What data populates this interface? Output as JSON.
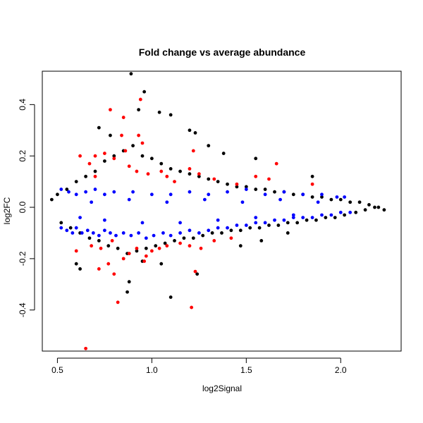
{
  "chart_data": {
    "type": "scatter",
    "title": "Fold change vs average abundance",
    "xlabel": "log2Signal",
    "ylabel": "log2FC",
    "xlim": [
      0.42,
      2.32
    ],
    "ylim": [
      -0.56,
      0.53
    ],
    "x_ticks": [
      {
        "value": 0.5,
        "label": "0.5"
      },
      {
        "value": 1.0,
        "label": "1.0"
      },
      {
        "value": 1.5,
        "label": "1.5"
      },
      {
        "value": 2.0,
        "label": "2.0"
      }
    ],
    "y_ticks": [
      {
        "value": -0.4,
        "label": "-0.4"
      },
      {
        "value": -0.2,
        "label": "-0.2"
      },
      {
        "value": 0.0,
        "label": "0.0"
      },
      {
        "value": 0.2,
        "label": "0.2"
      },
      {
        "value": 0.4,
        "label": "0.4"
      }
    ],
    "grid": false,
    "legend": "none",
    "series": [
      {
        "color": "#000000",
        "points": [
          [
            0.47,
            0.03
          ],
          [
            0.5,
            0.05
          ],
          [
            0.52,
            -0.06
          ],
          [
            0.55,
            0.07
          ],
          [
            0.57,
            -0.08
          ],
          [
            0.6,
            0.1
          ],
          [
            0.62,
            -0.1
          ],
          [
            0.65,
            0.12
          ],
          [
            0.67,
            -0.12
          ],
          [
            0.7,
            0.14
          ],
          [
            0.72,
            -0.13
          ],
          [
            0.75,
            0.18
          ],
          [
            0.77,
            -0.15
          ],
          [
            0.8,
            0.2
          ],
          [
            0.82,
            -0.16
          ],
          [
            0.85,
            0.22
          ],
          [
            0.87,
            -0.18
          ],
          [
            0.9,
            0.24
          ],
          [
            0.92,
            -0.17
          ],
          [
            0.95,
            0.2
          ],
          [
            0.97,
            -0.16
          ],
          [
            1.0,
            0.19
          ],
          [
            1.02,
            -0.15
          ],
          [
            1.05,
            0.17
          ],
          [
            1.07,
            -0.14
          ],
          [
            1.1,
            0.15
          ],
          [
            1.12,
            -0.13
          ],
          [
            1.15,
            0.14
          ],
          [
            1.17,
            -0.12
          ],
          [
            1.2,
            0.13
          ],
          [
            1.22,
            -0.12
          ],
          [
            1.25,
            0.12
          ],
          [
            1.27,
            -0.11
          ],
          [
            1.3,
            0.11
          ],
          [
            1.32,
            -0.1
          ],
          [
            1.35,
            0.1
          ],
          [
            1.37,
            -0.1
          ],
          [
            1.4,
            0.09
          ],
          [
            1.42,
            -0.09
          ],
          [
            1.45,
            0.08
          ],
          [
            1.47,
            -0.09
          ],
          [
            1.5,
            0.08
          ],
          [
            1.52,
            -0.08
          ],
          [
            1.55,
            0.07
          ],
          [
            1.57,
            -0.08
          ],
          [
            1.6,
            0.07
          ],
          [
            1.62,
            -0.07
          ],
          [
            1.65,
            0.06
          ],
          [
            1.67,
            -0.07
          ],
          [
            1.7,
            0.06
          ],
          [
            1.72,
            -0.06
          ],
          [
            1.75,
            0.05
          ],
          [
            1.77,
            -0.06
          ],
          [
            1.8,
            0.05
          ],
          [
            1.82,
            -0.05
          ],
          [
            1.85,
            0.04
          ],
          [
            1.87,
            -0.05
          ],
          [
            1.9,
            0.04
          ],
          [
            1.92,
            -0.04
          ],
          [
            1.95,
            0.03
          ],
          [
            1.97,
            -0.04
          ],
          [
            2.0,
            0.03
          ],
          [
            2.02,
            -0.03
          ],
          [
            2.05,
            0.02
          ],
          [
            2.08,
            -0.02
          ],
          [
            2.1,
            0.02
          ],
          [
            2.13,
            -0.01
          ],
          [
            2.15,
            0.01
          ],
          [
            2.18,
            0.0
          ],
          [
            2.2,
            0.0
          ],
          [
            2.23,
            -0.01
          ],
          [
            0.89,
            0.52
          ],
          [
            0.96,
            0.45
          ],
          [
            0.93,
            0.38
          ],
          [
            1.04,
            0.37
          ],
          [
            1.1,
            0.36
          ],
          [
            1.2,
            0.3
          ],
          [
            1.23,
            0.29
          ],
          [
            0.72,
            0.31
          ],
          [
            0.78,
            0.28
          ],
          [
            1.3,
            0.24
          ],
          [
            1.38,
            0.21
          ],
          [
            1.55,
            0.19
          ],
          [
            1.85,
            0.12
          ],
          [
            0.6,
            -0.22
          ],
          [
            0.62,
            -0.24
          ],
          [
            0.88,
            -0.29
          ],
          [
            0.87,
            -0.33
          ],
          [
            1.1,
            -0.35
          ],
          [
            1.24,
            -0.26
          ],
          [
            1.05,
            -0.22
          ],
          [
            0.95,
            -0.21
          ],
          [
            1.47,
            -0.15
          ],
          [
            1.58,
            -0.13
          ],
          [
            1.72,
            -0.1
          ]
        ]
      },
      {
        "color": "#0000ff",
        "points": [
          [
            0.52,
            -0.08
          ],
          [
            0.55,
            -0.09
          ],
          [
            0.58,
            -0.1
          ],
          [
            0.6,
            -0.08
          ],
          [
            0.63,
            -0.1
          ],
          [
            0.66,
            -0.09
          ],
          [
            0.69,
            -0.1
          ],
          [
            0.72,
            -0.11
          ],
          [
            0.75,
            -0.09
          ],
          [
            0.78,
            -0.1
          ],
          [
            0.81,
            -0.11
          ],
          [
            0.85,
            -0.1
          ],
          [
            0.89,
            -0.11
          ],
          [
            0.93,
            -0.1
          ],
          [
            0.97,
            -0.12
          ],
          [
            1.01,
            -0.11
          ],
          [
            1.06,
            -0.1
          ],
          [
            1.1,
            -0.11
          ],
          [
            1.15,
            -0.1
          ],
          [
            1.2,
            -0.09
          ],
          [
            1.25,
            -0.1
          ],
          [
            1.3,
            -0.09
          ],
          [
            1.35,
            -0.08
          ],
          [
            1.4,
            -0.08
          ],
          [
            1.45,
            -0.07
          ],
          [
            1.5,
            -0.07
          ],
          [
            1.55,
            -0.06
          ],
          [
            1.6,
            -0.06
          ],
          [
            1.65,
            -0.05
          ],
          [
            1.7,
            -0.05
          ],
          [
            1.75,
            -0.04
          ],
          [
            1.8,
            -0.04
          ],
          [
            1.85,
            -0.04
          ],
          [
            1.9,
            -0.03
          ],
          [
            1.95,
            -0.03
          ],
          [
            2.0,
            -0.02
          ],
          [
            2.05,
            -0.02
          ],
          [
            0.52,
            0.07
          ],
          [
            0.56,
            0.06
          ],
          [
            0.6,
            0.05
          ],
          [
            0.65,
            0.06
          ],
          [
            0.7,
            0.07
          ],
          [
            0.75,
            0.05
          ],
          [
            0.8,
            0.06
          ],
          [
            0.9,
            0.06
          ],
          [
            1.0,
            0.05
          ],
          [
            1.1,
            0.05
          ],
          [
            1.2,
            0.06
          ],
          [
            1.3,
            0.05
          ],
          [
            1.4,
            0.06
          ],
          [
            1.5,
            0.07
          ],
          [
            1.6,
            0.05
          ],
          [
            1.7,
            0.06
          ],
          [
            1.8,
            0.05
          ],
          [
            1.9,
            0.05
          ],
          [
            1.98,
            0.04
          ],
          [
            2.02,
            0.04
          ],
          [
            0.62,
            -0.04
          ],
          [
            0.75,
            -0.05
          ],
          [
            0.95,
            -0.06
          ],
          [
            1.15,
            -0.06
          ],
          [
            1.35,
            -0.05
          ],
          [
            1.55,
            -0.04
          ],
          [
            1.75,
            -0.03
          ],
          [
            0.68,
            0.02
          ],
          [
            0.88,
            0.03
          ],
          [
            1.08,
            0.02
          ],
          [
            1.28,
            0.03
          ],
          [
            1.48,
            0.02
          ],
          [
            1.68,
            0.03
          ],
          [
            1.88,
            0.02
          ]
        ]
      },
      {
        "color": "#ff0000",
        "points": [
          [
            0.65,
            -0.55
          ],
          [
            0.82,
            -0.37
          ],
          [
            1.21,
            -0.39
          ],
          [
            0.78,
            0.38
          ],
          [
            0.94,
            0.42
          ],
          [
            0.85,
            0.35
          ],
          [
            0.84,
            0.28
          ],
          [
            0.93,
            0.28
          ],
          [
            0.95,
            0.25
          ],
          [
            0.62,
            0.2
          ],
          [
            0.67,
            0.17
          ],
          [
            0.7,
            0.2
          ],
          [
            0.75,
            0.21
          ],
          [
            0.8,
            0.19
          ],
          [
            0.88,
            0.16
          ],
          [
            0.92,
            0.14
          ],
          [
            0.98,
            0.13
          ],
          [
            1.05,
            0.14
          ],
          [
            1.08,
            0.12
          ],
          [
            1.12,
            0.1
          ],
          [
            1.2,
            0.15
          ],
          [
            1.22,
            0.22
          ],
          [
            1.25,
            0.13
          ],
          [
            1.33,
            0.11
          ],
          [
            1.45,
            0.09
          ],
          [
            1.55,
            0.12
          ],
          [
            1.62,
            0.11
          ],
          [
            1.66,
            0.17
          ],
          [
            1.85,
            0.09
          ],
          [
            0.6,
            -0.17
          ],
          [
            0.68,
            -0.15
          ],
          [
            0.72,
            -0.24
          ],
          [
            0.77,
            -0.22
          ],
          [
            0.85,
            -0.2
          ],
          [
            0.88,
            -0.18
          ],
          [
            0.92,
            -0.16
          ],
          [
            0.97,
            -0.19
          ],
          [
            1.0,
            -0.17
          ],
          [
            1.04,
            -0.16
          ],
          [
            1.08,
            -0.15
          ],
          [
            1.15,
            -0.14
          ],
          [
            1.2,
            -0.15
          ],
          [
            1.26,
            -0.16
          ],
          [
            1.33,
            -0.13
          ],
          [
            1.42,
            -0.12
          ],
          [
            0.73,
            -0.16
          ],
          [
            0.79,
            -0.13
          ],
          [
            0.96,
            -0.21
          ],
          [
            1.23,
            -0.25
          ],
          [
            0.8,
            -0.26
          ],
          [
            0.7,
            0.12
          ],
          [
            0.86,
            0.22
          ]
        ]
      }
    ]
  }
}
